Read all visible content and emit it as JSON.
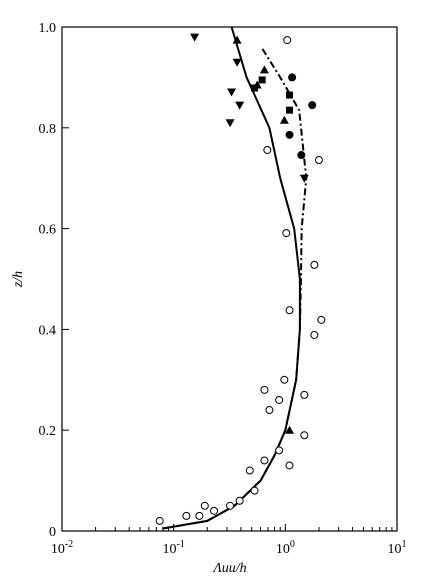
{
  "chart_data": {
    "type": "scatter",
    "xlabel": "Λuu/h",
    "ylabel": "z/h",
    "xscale": "log",
    "xlim": [
      0.01,
      10
    ],
    "ylim": [
      0,
      1
    ],
    "xticks": [
      {
        "value": 0.01,
        "label": "10",
        "exponent": "-2"
      },
      {
        "value": 0.1,
        "label": "10",
        "exponent": "-1"
      },
      {
        "value": 1,
        "label": "10",
        "exponent": "0"
      },
      {
        "value": 10,
        "label": "10",
        "exponent": "1"
      }
    ],
    "yticks": [
      0,
      0.2,
      0.4,
      0.6,
      0.8,
      {
        "value": 1,
        "label": "1.0"
      }
    ],
    "series": [
      {
        "kind": "line",
        "style": "solid",
        "color": "#000000",
        "x": [
          0.08,
          0.2,
          0.35,
          0.6,
          0.8,
          1.0,
          1.25,
          1.35,
          1.35,
          1.2,
          0.9,
          0.72,
          0.45,
          0.33
        ],
        "values": [
          0.005,
          0.02,
          0.05,
          0.1,
          0.15,
          0.2,
          0.3,
          0.4,
          0.5,
          0.6,
          0.7,
          0.8,
          0.9,
          1.0
        ]
      },
      {
        "kind": "line",
        "style": "dashdot",
        "color": "#000000",
        "x": [
          0.08,
          0.2,
          0.35,
          0.6,
          0.8,
          1.0,
          1.25,
          1.35,
          1.38,
          1.4,
          1.54,
          1.33,
          0.9,
          0.61
        ],
        "values": [
          0.005,
          0.02,
          0.05,
          0.1,
          0.15,
          0.2,
          0.3,
          0.4,
          0.5,
          0.6,
          0.7,
          0.835,
          0.9,
          0.96
        ]
      },
      {
        "kind": "scatter",
        "marker": "open-circle",
        "color": "#000000",
        "x": [
          1.04,
          2.0,
          0.69,
          1.02,
          1.82,
          1.09,
          2.1,
          1.82,
          0.98,
          0.65,
          0.88,
          1.48,
          0.72,
          1.48,
          0.88,
          0.65,
          1.09,
          0.48,
          0.53,
          0.39,
          0.32,
          0.19,
          0.17,
          0.13,
          0.075,
          0.23
        ],
        "values": [
          0.974,
          0.736,
          0.756,
          0.591,
          0.528,
          0.438,
          0.419,
          0.389,
          0.3,
          0.28,
          0.26,
          0.27,
          0.24,
          0.19,
          0.16,
          0.14,
          0.13,
          0.12,
          0.08,
          0.06,
          0.05,
          0.05,
          0.03,
          0.03,
          0.02,
          0.04
        ]
      },
      {
        "kind": "scatter",
        "marker": "filled-circle",
        "color": "#000000",
        "x": [
          1.74,
          1.09,
          1.39,
          1.15
        ],
        "values": [
          0.845,
          0.786,
          0.746,
          0.9
        ]
      },
      {
        "kind": "scatter",
        "marker": "square",
        "color": "#000000",
        "x": [
          0.62,
          1.09,
          1.09,
          0.53
        ],
        "values": [
          0.895,
          0.865,
          0.835,
          0.879
        ]
      },
      {
        "kind": "scatter",
        "marker": "triangle",
        "color": "#000000",
        "x": [
          0.37,
          0.56,
          0.65,
          0.98,
          1.09
        ],
        "values": [
          0.974,
          0.885,
          0.915,
          0.815,
          0.2
        ]
      },
      {
        "kind": "scatter",
        "marker": "inverted-triangle",
        "color": "#000000",
        "x": [
          0.154,
          0.37,
          0.33,
          0.39,
          0.32,
          1.48
        ],
        "values": [
          0.98,
          0.93,
          0.871,
          0.845,
          0.81,
          0.7
        ]
      }
    ]
  }
}
